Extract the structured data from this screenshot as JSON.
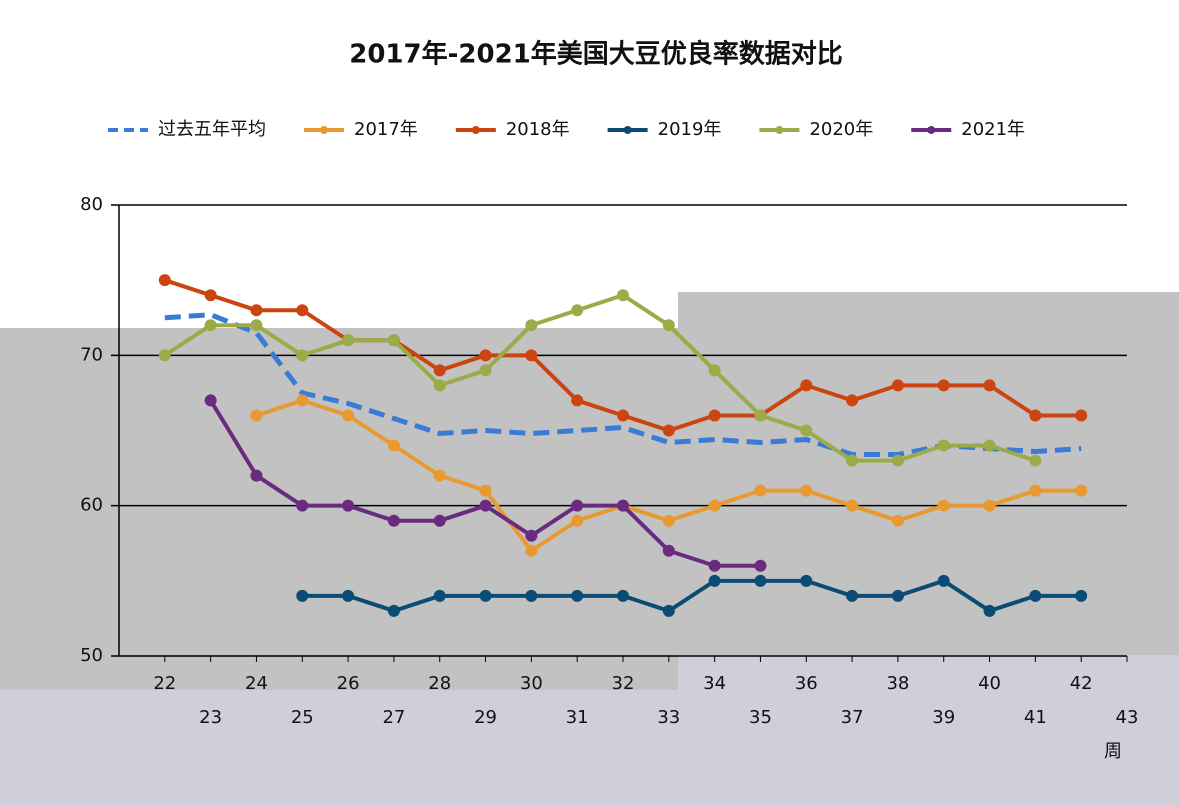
{
  "chart_data": {
    "type": "line",
    "title": "2017年-2021年美国大豆优良率数据对比",
    "x_label": "周",
    "x": [
      22,
      23,
      24,
      25,
      26,
      27,
      28,
      29,
      30,
      31,
      32,
      33,
      34,
      35,
      36,
      37,
      38,
      39,
      40,
      41,
      42
    ],
    "series": [
      {
        "name": "过去五年平均",
        "color": "#3a7bd5",
        "dashed": true,
        "values": [
          72.5,
          72.7,
          71.5,
          67.5,
          66.8,
          65.8,
          64.8,
          65,
          64.8,
          65,
          65.2,
          64.2,
          64.4,
          64.2,
          64.4,
          63.4,
          63.4,
          64,
          63.8,
          63.6,
          63.8
        ]
      },
      {
        "name": "2017年",
        "color": "#e89a30",
        "values": [
          null,
          null,
          66,
          67,
          66,
          64,
          62,
          61,
          57,
          59,
          60,
          59,
          60,
          61,
          61,
          60,
          59,
          60,
          60,
          61,
          61
        ]
      },
      {
        "name": "2018年",
        "color": "#cc4410",
        "values": [
          75,
          74,
          73,
          73,
          71,
          71,
          69,
          70,
          70,
          67,
          66,
          65,
          66,
          66,
          68,
          67,
          68,
          68,
          68,
          66,
          66
        ]
      },
      {
        "name": "2019年",
        "color": "#0a4c74",
        "values": [
          null,
          null,
          null,
          54,
          54,
          53,
          54,
          54,
          54,
          54,
          54,
          53,
          55,
          55,
          55,
          54,
          54,
          55,
          53,
          54,
          54
        ]
      },
      {
        "name": "2020年",
        "color": "#9aac48",
        "values": [
          70,
          72,
          72,
          70,
          71,
          71,
          68,
          69,
          72,
          73,
          74,
          72,
          69,
          66,
          65,
          63,
          63,
          64,
          64,
          63,
          null
        ]
      },
      {
        "name": "2021年",
        "color": "#6a2a80",
        "values": [
          null,
          67,
          62,
          60,
          60,
          59,
          59,
          60,
          58,
          60,
          60,
          57,
          56,
          56,
          null,
          null,
          null,
          null,
          null,
          null,
          null
        ]
      }
    ],
    "xlim": [
      21,
      43
    ],
    "xticks": [
      22,
      23,
      24,
      25,
      26,
      27,
      28,
      29,
      30,
      31,
      32,
      33,
      34,
      35,
      36,
      37,
      38,
      39,
      40,
      41,
      42,
      43
    ],
    "ylim": [
      50,
      80
    ],
    "yticks": [
      50,
      60,
      70,
      80
    ],
    "grid": true,
    "legend": "top"
  }
}
